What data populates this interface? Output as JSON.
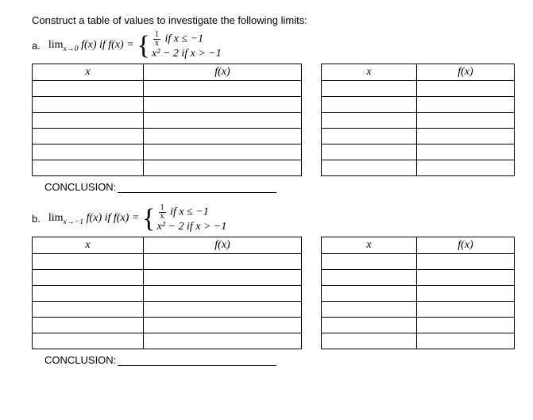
{
  "prompt": "Construct a table of values to investigate the following limits:",
  "parts": [
    {
      "label": "a.",
      "limit_prefix": "lim",
      "limit_sub": "x→0",
      "limit_of": " f(x) if f(x) = ",
      "piece_top_frac_num": "1",
      "piece_top_frac_den": "x",
      "piece_top_cond": " if x ≤ −1",
      "piece_bot_expr": "x² − 2",
      "piece_bot_cond": "  if x > −1",
      "col_x": "x",
      "col_fx": "f(x)",
      "conclusion_label": "CONCLUSION:"
    },
    {
      "label": "b.",
      "limit_prefix": "lim",
      "limit_sub": "x→−1",
      "limit_of": " f(x) if f(x) = ",
      "piece_top_frac_num": "1",
      "piece_top_frac_den": "x",
      "piece_top_cond": " if x ≤ −1",
      "piece_bot_expr": "x² − 2",
      "piece_bot_cond": "  if x > −1",
      "col_x": "x",
      "col_fx": "f(x)",
      "conclusion_label": "CONCLUSION:"
    }
  ],
  "table": {
    "body_rows": 6
  }
}
